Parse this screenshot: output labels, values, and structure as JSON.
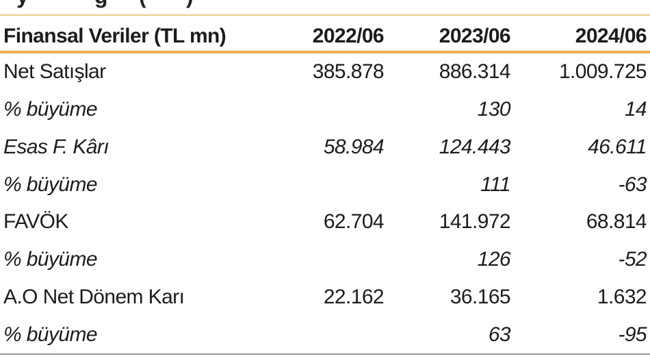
{
  "top_clipped_fragments": {
    "description": "bottoms of letters from a title line cut off at the top edge",
    "glyphs": [
      "y",
      "ğ",
      "(",
      ")"
    ]
  },
  "table": {
    "header": {
      "label": "Finansal Veriler (TL mn)",
      "columns": [
        "2022/06",
        "2023/06",
        "2024/06"
      ]
    },
    "rows": [
      {
        "label": "Net Satışlar",
        "italic": false,
        "values": [
          "385.878",
          "886.314",
          "1.009.725"
        ]
      },
      {
        "label": "% büyüme",
        "italic": true,
        "values": [
          "",
          "130",
          "14"
        ]
      },
      {
        "label": "Esas F. Kârı",
        "italic": true,
        "values": [
          "58.984",
          "124.443",
          "46.611"
        ]
      },
      {
        "label": "% büyüme",
        "italic": true,
        "values": [
          "",
          "111",
          "-63"
        ]
      },
      {
        "label": "FAVÖK",
        "italic": false,
        "values": [
          "62.704",
          "141.972",
          "68.814"
        ]
      },
      {
        "label": "% büyüme",
        "italic": true,
        "values": [
          "",
          "126",
          "-52"
        ]
      },
      {
        "label": "A.O Net Dönem Karı",
        "italic": false,
        "values": [
          "22.162",
          "36.165",
          "1.632"
        ]
      },
      {
        "label": "% büyüme",
        "italic": true,
        "values": [
          "",
          "63",
          "-95"
        ]
      }
    ]
  },
  "colors": {
    "accent_line": "#E9B052",
    "top_hairline": "#EEC987",
    "bottom_line": "#9A9A9A",
    "text": "#1C1C1C"
  }
}
